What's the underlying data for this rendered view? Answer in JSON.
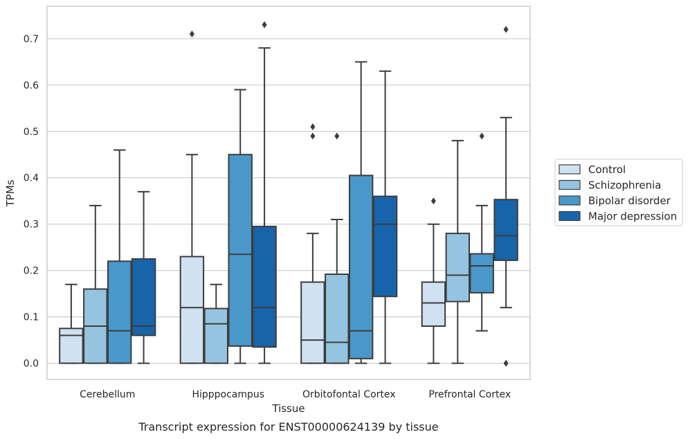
{
  "chart_data": {
    "type": "boxplot",
    "xlabel": "Tissue",
    "ylabel": "TPMs",
    "caption": "Transcript expression for ENST00000624139 by tissue",
    "ylim": [
      -0.035,
      0.77
    ],
    "yticks": [
      0.0,
      0.1,
      0.2,
      0.3,
      0.4,
      0.5,
      0.6,
      0.7
    ],
    "ytick_labels": [
      "0.0",
      "0.1",
      "0.2",
      "0.3",
      "0.4",
      "0.5",
      "0.6",
      "0.7"
    ],
    "grid": "horizontal",
    "legend_position": "right",
    "categories": [
      "Cerebellum",
      "Hipppocampus",
      "Orbitofontal Cortex",
      "Prefrontal Cortex"
    ],
    "series": [
      {
        "name": "Control",
        "color": "#d0e1f2",
        "boxes": [
          {
            "whislo": 0.0,
            "q1": 0.0,
            "med": 0.06,
            "q3": 0.075,
            "whishi": 0.17,
            "fliers": []
          },
          {
            "whislo": 0.0,
            "q1": 0.0,
            "med": 0.12,
            "q3": 0.23,
            "whishi": 0.45,
            "fliers": [
              0.71
            ]
          },
          {
            "whislo": 0.0,
            "q1": 0.0,
            "med": 0.05,
            "q3": 0.175,
            "whishi": 0.28,
            "fliers": [
              0.49,
              0.51
            ]
          },
          {
            "whislo": 0.0,
            "q1": 0.08,
            "med": 0.13,
            "q3": 0.175,
            "whishi": 0.3,
            "fliers": [
              0.35
            ]
          }
        ]
      },
      {
        "name": "Schizophrenia",
        "color": "#94c4df",
        "boxes": [
          {
            "whislo": 0.0,
            "q1": 0.0,
            "med": 0.08,
            "q3": 0.16,
            "whishi": 0.34,
            "fliers": []
          },
          {
            "whislo": 0.0,
            "q1": 0.0,
            "med": 0.085,
            "q3": 0.118,
            "whishi": 0.17,
            "fliers": []
          },
          {
            "whislo": 0.0,
            "q1": 0.0,
            "med": 0.045,
            "q3": 0.192,
            "whishi": 0.31,
            "fliers": [
              0.49
            ]
          },
          {
            "whislo": 0.0,
            "q1": 0.133,
            "med": 0.19,
            "q3": 0.28,
            "whishi": 0.48,
            "fliers": []
          }
        ]
      },
      {
        "name": "Bipolar disorder",
        "color": "#4a98c9",
        "boxes": [
          {
            "whislo": 0.0,
            "q1": 0.0,
            "med": 0.07,
            "q3": 0.22,
            "whishi": 0.46,
            "fliers": []
          },
          {
            "whislo": 0.0,
            "q1": 0.037,
            "med": 0.235,
            "q3": 0.45,
            "whishi": 0.59,
            "fliers": []
          },
          {
            "whislo": 0.0,
            "q1": 0.01,
            "med": 0.07,
            "q3": 0.405,
            "whishi": 0.65,
            "fliers": []
          },
          {
            "whislo": 0.07,
            "q1": 0.152,
            "med": 0.21,
            "q3": 0.236,
            "whishi": 0.34,
            "fliers": [
              0.49
            ]
          }
        ]
      },
      {
        "name": "Major depression",
        "color": "#1764ab",
        "boxes": [
          {
            "whislo": 0.0,
            "q1": 0.06,
            "med": 0.08,
            "q3": 0.225,
            "whishi": 0.37,
            "fliers": []
          },
          {
            "whislo": 0.0,
            "q1": 0.035,
            "med": 0.12,
            "q3": 0.295,
            "whishi": 0.68,
            "fliers": [
              0.73
            ]
          },
          {
            "whislo": 0.0,
            "q1": 0.144,
            "med": 0.3,
            "q3": 0.36,
            "whishi": 0.63,
            "fliers": []
          },
          {
            "whislo": 0.12,
            "q1": 0.222,
            "med": 0.275,
            "q3": 0.353,
            "whishi": 0.53,
            "fliers": [
              0.0,
              0.72
            ]
          }
        ]
      }
    ],
    "style": {
      "line_color": "#3c3c3c",
      "grid_color": "#cccccc",
      "frame_color": "#cccccc"
    }
  }
}
